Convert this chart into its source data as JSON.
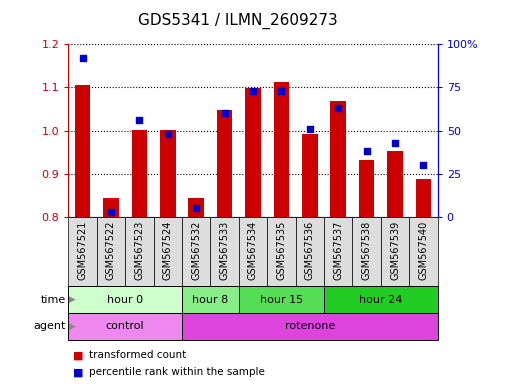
{
  "title": "GDS5341 / ILMN_2609273",
  "samples": [
    "GSM567521",
    "GSM567522",
    "GSM567523",
    "GSM567524",
    "GSM567532",
    "GSM567533",
    "GSM567534",
    "GSM567535",
    "GSM567536",
    "GSM567537",
    "GSM567538",
    "GSM567539",
    "GSM567540"
  ],
  "transformed_count": [
    1.105,
    0.845,
    1.002,
    1.001,
    0.845,
    1.048,
    1.098,
    1.112,
    0.993,
    1.068,
    0.932,
    0.953,
    0.888
  ],
  "percentile_rank": [
    92,
    3,
    56,
    48,
    5,
    60,
    73,
    73,
    51,
    63,
    38,
    43,
    30
  ],
  "bar_color": "#cc0000",
  "dot_color": "#0000cc",
  "ylim_left": [
    0.8,
    1.2
  ],
  "ylim_right": [
    0,
    100
  ],
  "yticks_left": [
    0.8,
    0.9,
    1.0,
    1.1,
    1.2
  ],
  "yticks_right": [
    0,
    25,
    50,
    75,
    100
  ],
  "ytick_labels_right": [
    "0",
    "25",
    "50",
    "75",
    "100%"
  ],
  "grid_color": "black",
  "time_groups": [
    {
      "label": "hour 0",
      "start": 0,
      "end": 4,
      "color": "#ccffcc"
    },
    {
      "label": "hour 8",
      "start": 4,
      "end": 6,
      "color": "#88ee88"
    },
    {
      "label": "hour 15",
      "start": 6,
      "end": 9,
      "color": "#55dd55"
    },
    {
      "label": "hour 24",
      "start": 9,
      "end": 13,
      "color": "#22cc22"
    }
  ],
  "agent_groups": [
    {
      "label": "control",
      "start": 0,
      "end": 4,
      "color": "#ee88ee"
    },
    {
      "label": "rotenone",
      "start": 4,
      "end": 13,
      "color": "#dd44dd"
    }
  ],
  "legend_red": "transformed count",
  "legend_blue": "percentile rank within the sample",
  "sample_area_color": "#dddddd",
  "title_fontsize": 11,
  "tick_fontsize": 7,
  "row_fontsize": 8
}
